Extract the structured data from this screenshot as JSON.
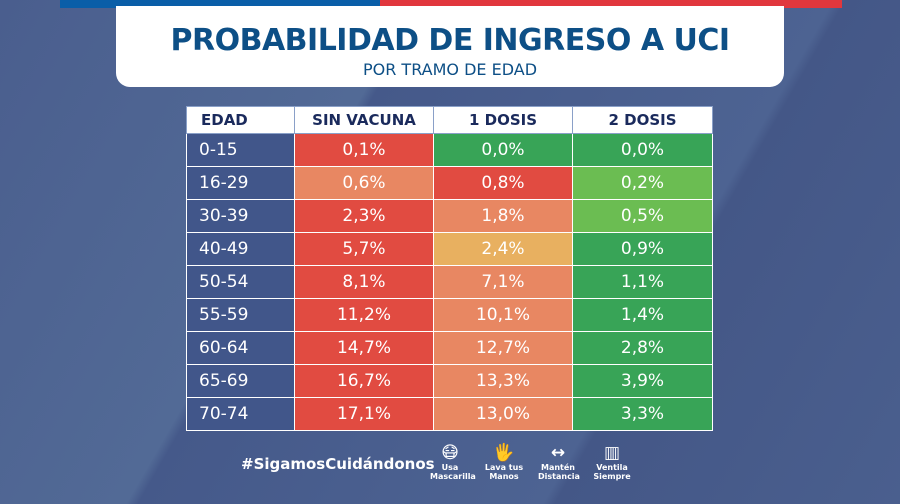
{
  "header": {
    "title": "PROBABILIDAD DE INGRESO A UCI",
    "subtitle": "POR TRAMO DE EDAD"
  },
  "colors": {
    "red": "#e14b41",
    "salmon": "#e88762",
    "yellow": "#e8b060",
    "green": "#38a457",
    "light_green": "#6bbd52",
    "blue": "#0d4f86"
  },
  "table": {
    "headers": [
      "EDAD",
      "SIN VACUNA",
      "1 DOSIS",
      "2 DOSIS"
    ],
    "rows": [
      {
        "age": "0-15",
        "values": [
          "0,1%",
          "0,0%",
          "0,0%"
        ],
        "colors": [
          "red",
          "green",
          "green"
        ]
      },
      {
        "age": "16-29",
        "values": [
          "0,6%",
          "0,8%",
          "0,2%"
        ],
        "colors": [
          "salmon",
          "red",
          "light_green"
        ]
      },
      {
        "age": "30-39",
        "values": [
          "2,3%",
          "1,8%",
          "0,5%"
        ],
        "colors": [
          "red",
          "salmon",
          "light_green"
        ]
      },
      {
        "age": "40-49",
        "values": [
          "5,7%",
          "2,4%",
          "0,9%"
        ],
        "colors": [
          "red",
          "yellow",
          "green"
        ]
      },
      {
        "age": "50-54",
        "values": [
          "8,1%",
          "7,1%",
          "1,1%"
        ],
        "colors": [
          "red",
          "salmon",
          "green"
        ]
      },
      {
        "age": "55-59",
        "values": [
          "11,2%",
          "10,1%",
          "1,4%"
        ],
        "colors": [
          "red",
          "salmon",
          "green"
        ]
      },
      {
        "age": "60-64",
        "values": [
          "14,7%",
          "12,7%",
          "2,8%"
        ],
        "colors": [
          "red",
          "salmon",
          "green"
        ]
      },
      {
        "age": "65-69",
        "values": [
          "16,7%",
          "13,3%",
          "3,9%"
        ],
        "colors": [
          "red",
          "salmon",
          "green"
        ]
      },
      {
        "age": "70-74",
        "values": [
          "17,1%",
          "13,0%",
          "3,3%"
        ],
        "colors": [
          "red",
          "salmon",
          "green"
        ]
      }
    ]
  },
  "footer": {
    "hashtag": "#SigamosCuidándonos",
    "icons": [
      {
        "icon": "mask-icon",
        "line1": "Usa",
        "line2": "Mascarilla"
      },
      {
        "icon": "handwash-icon",
        "line1": "Lava tus",
        "line2": "Manos"
      },
      {
        "icon": "distance-icon",
        "line1": "Mantén",
        "line2": "Distancia"
      },
      {
        "icon": "window-icon",
        "line1": "Ventila",
        "line2": "Siempre"
      }
    ]
  }
}
